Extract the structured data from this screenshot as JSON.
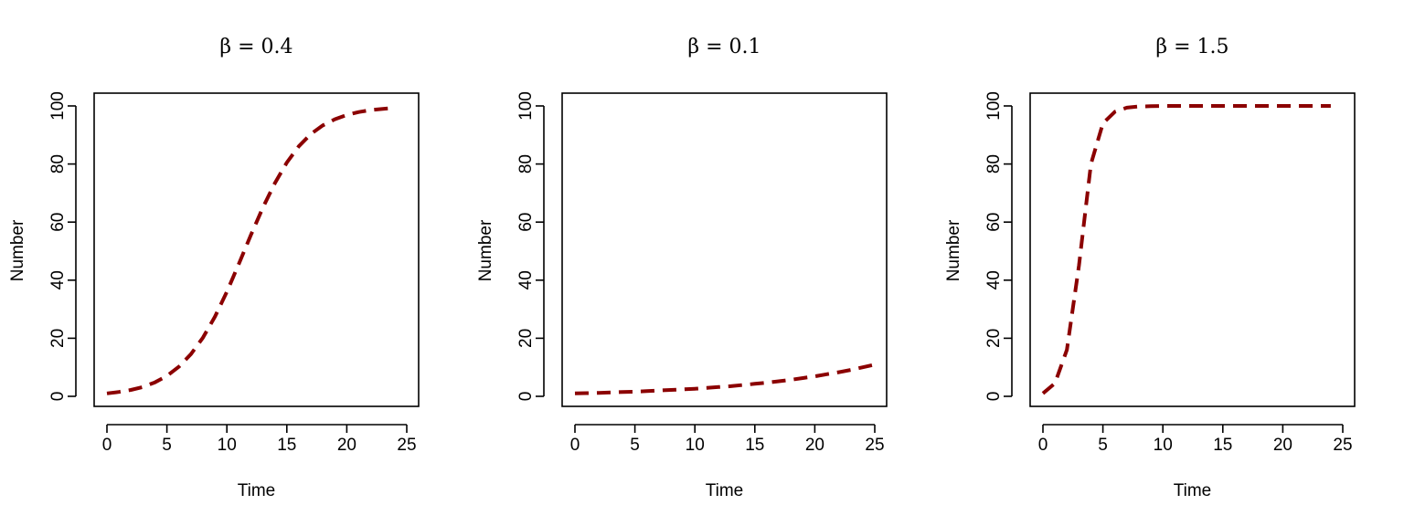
{
  "chart_data": [
    {
      "type": "line",
      "title": "β = 0.4",
      "xlabel": "Time",
      "ylabel": "Number",
      "xlim": [
        0,
        25
      ],
      "ylim": [
        0,
        100
      ],
      "xticks": [
        "0",
        "5",
        "10",
        "15",
        "20",
        "25"
      ],
      "yticks": [
        "0",
        "20",
        "40",
        "60",
        "80",
        "100"
      ],
      "color": "#8B0000",
      "line_style": "dashed",
      "series": [
        {
          "x": [
            0,
            1,
            2,
            3,
            4,
            5,
            6,
            7,
            8,
            9,
            10,
            11,
            12,
            13,
            14,
            15,
            16,
            17,
            18,
            19,
            20,
            21,
            22,
            23,
            24
          ],
          "values": [
            1.0,
            1.5,
            2.2,
            3.2,
            4.8,
            7.0,
            10.2,
            14.5,
            20.2,
            27.4,
            36.0,
            45.6,
            55.5,
            65.0,
            73.4,
            80.5,
            86.1,
            90.3,
            93.3,
            95.4,
            96.9,
            97.9,
            98.6,
            99.0,
            99.3
          ]
        }
      ]
    },
    {
      "type": "line",
      "title": "β = 0.1",
      "xlabel": "Time",
      "ylabel": "Number",
      "xlim": [
        0,
        25
      ],
      "ylim": [
        0,
        100
      ],
      "xticks": [
        "0",
        "5",
        "10",
        "15",
        "20",
        "25"
      ],
      "yticks": [
        "0",
        "20",
        "40",
        "60",
        "80",
        "100"
      ],
      "color": "#8B0000",
      "line_style": "dashed",
      "series": [
        {
          "x": [
            0,
            1,
            2,
            3,
            4,
            5,
            6,
            7,
            8,
            9,
            10,
            11,
            12,
            13,
            14,
            15,
            16,
            17,
            18,
            19,
            20,
            21,
            22,
            23,
            24,
            25
          ],
          "values": [
            1.0,
            1.1,
            1.2,
            1.35,
            1.5,
            1.6,
            1.8,
            2.0,
            2.2,
            2.4,
            2.6,
            2.9,
            3.2,
            3.5,
            3.9,
            4.3,
            4.7,
            5.2,
            5.7,
            6.3,
            6.9,
            7.6,
            8.3,
            9.1,
            10.0,
            10.9
          ]
        }
      ]
    },
    {
      "type": "line",
      "title": "β = 1.5",
      "xlabel": "Time",
      "ylabel": "Number",
      "xlim": [
        0,
        25
      ],
      "ylim": [
        0,
        100
      ],
      "xticks": [
        "0",
        "5",
        "10",
        "15",
        "20",
        "25"
      ],
      "yticks": [
        "0",
        "20",
        "40",
        "60",
        "80",
        "100"
      ],
      "color": "#8B0000",
      "line_style": "dashed",
      "series": [
        {
          "x": [
            0,
            1,
            2,
            3,
            4,
            5,
            6,
            7,
            8,
            9,
            10,
            11,
            12,
            13,
            14,
            15,
            16,
            17,
            18,
            19,
            20,
            21,
            22,
            23,
            24
          ],
          "values": [
            1.0,
            4.5,
            16.0,
            45.0,
            80.0,
            94.0,
            98.0,
            99.4,
            99.8,
            99.9,
            100,
            100,
            100,
            100,
            100,
            100,
            100,
            100,
            100,
            100,
            100,
            100,
            100,
            100,
            100
          ]
        }
      ]
    }
  ]
}
